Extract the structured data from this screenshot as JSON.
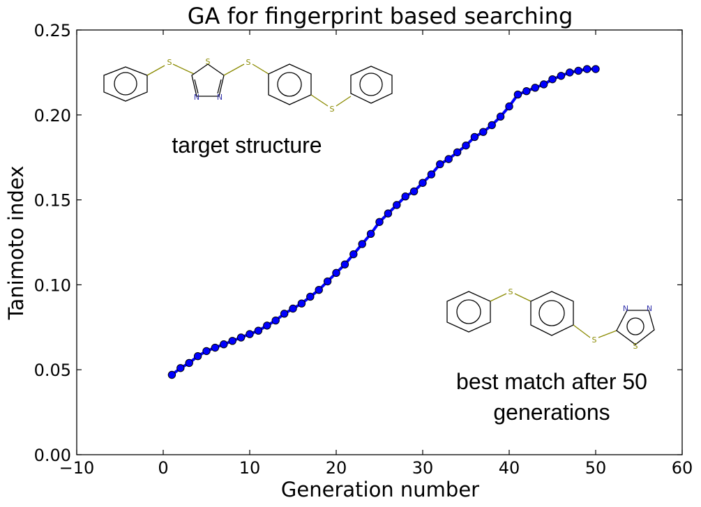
{
  "chart_data": {
    "type": "line",
    "title": "GA for fingerprint based searching",
    "xlabel": "Generation number",
    "ylabel": "Tanimoto index",
    "xlim": [
      -10,
      60
    ],
    "ylim": [
      0.0,
      0.25
    ],
    "xticks": [
      "−10",
      "0",
      "10",
      "20",
      "30",
      "40",
      "50",
      "60"
    ],
    "yticks": [
      "0.00",
      "0.05",
      "0.10",
      "0.15",
      "0.20",
      "0.25"
    ],
    "grid": false,
    "series": [
      {
        "color": "#0000ff",
        "marker": "circle",
        "x": [
          1,
          2,
          3,
          4,
          5,
          6,
          7,
          8,
          9,
          10,
          11,
          12,
          13,
          14,
          15,
          16,
          17,
          18,
          19,
          20,
          21,
          22,
          23,
          24,
          25,
          26,
          27,
          28,
          29,
          30,
          31,
          32,
          33,
          34,
          35,
          36,
          37,
          38,
          39,
          40,
          41,
          42,
          43,
          44,
          45,
          46,
          47,
          48,
          49,
          50
        ],
        "y": [
          0.047,
          0.051,
          0.054,
          0.058,
          0.061,
          0.063,
          0.065,
          0.067,
          0.069,
          0.071,
          0.073,
          0.076,
          0.079,
          0.083,
          0.086,
          0.089,
          0.093,
          0.097,
          0.102,
          0.107,
          0.112,
          0.118,
          0.124,
          0.13,
          0.137,
          0.142,
          0.147,
          0.152,
          0.155,
          0.16,
          0.165,
          0.171,
          0.174,
          0.178,
          0.182,
          0.187,
          0.19,
          0.194,
          0.199,
          0.205,
          0.212,
          0.214,
          0.216,
          0.218,
          0.221,
          0.223,
          0.225,
          0.226,
          0.227,
          0.227
        ]
      }
    ],
    "annotations": [
      {
        "text": "target structure",
        "position": "top-left"
      },
      {
        "text_lines": [
          "best match after 50",
          "generations"
        ],
        "position": "bottom-right"
      }
    ]
  },
  "molecules": {
    "target": {
      "atoms": [
        "S",
        "S",
        "S",
        "N",
        "N",
        "S",
        "S"
      ]
    },
    "best_match": {
      "atoms": [
        "S",
        "N",
        "N",
        "S",
        "S"
      ]
    }
  },
  "colors": {
    "sulfur": "#8a8a00",
    "nitrogen": "#3333aa",
    "series": "#0000ff"
  }
}
